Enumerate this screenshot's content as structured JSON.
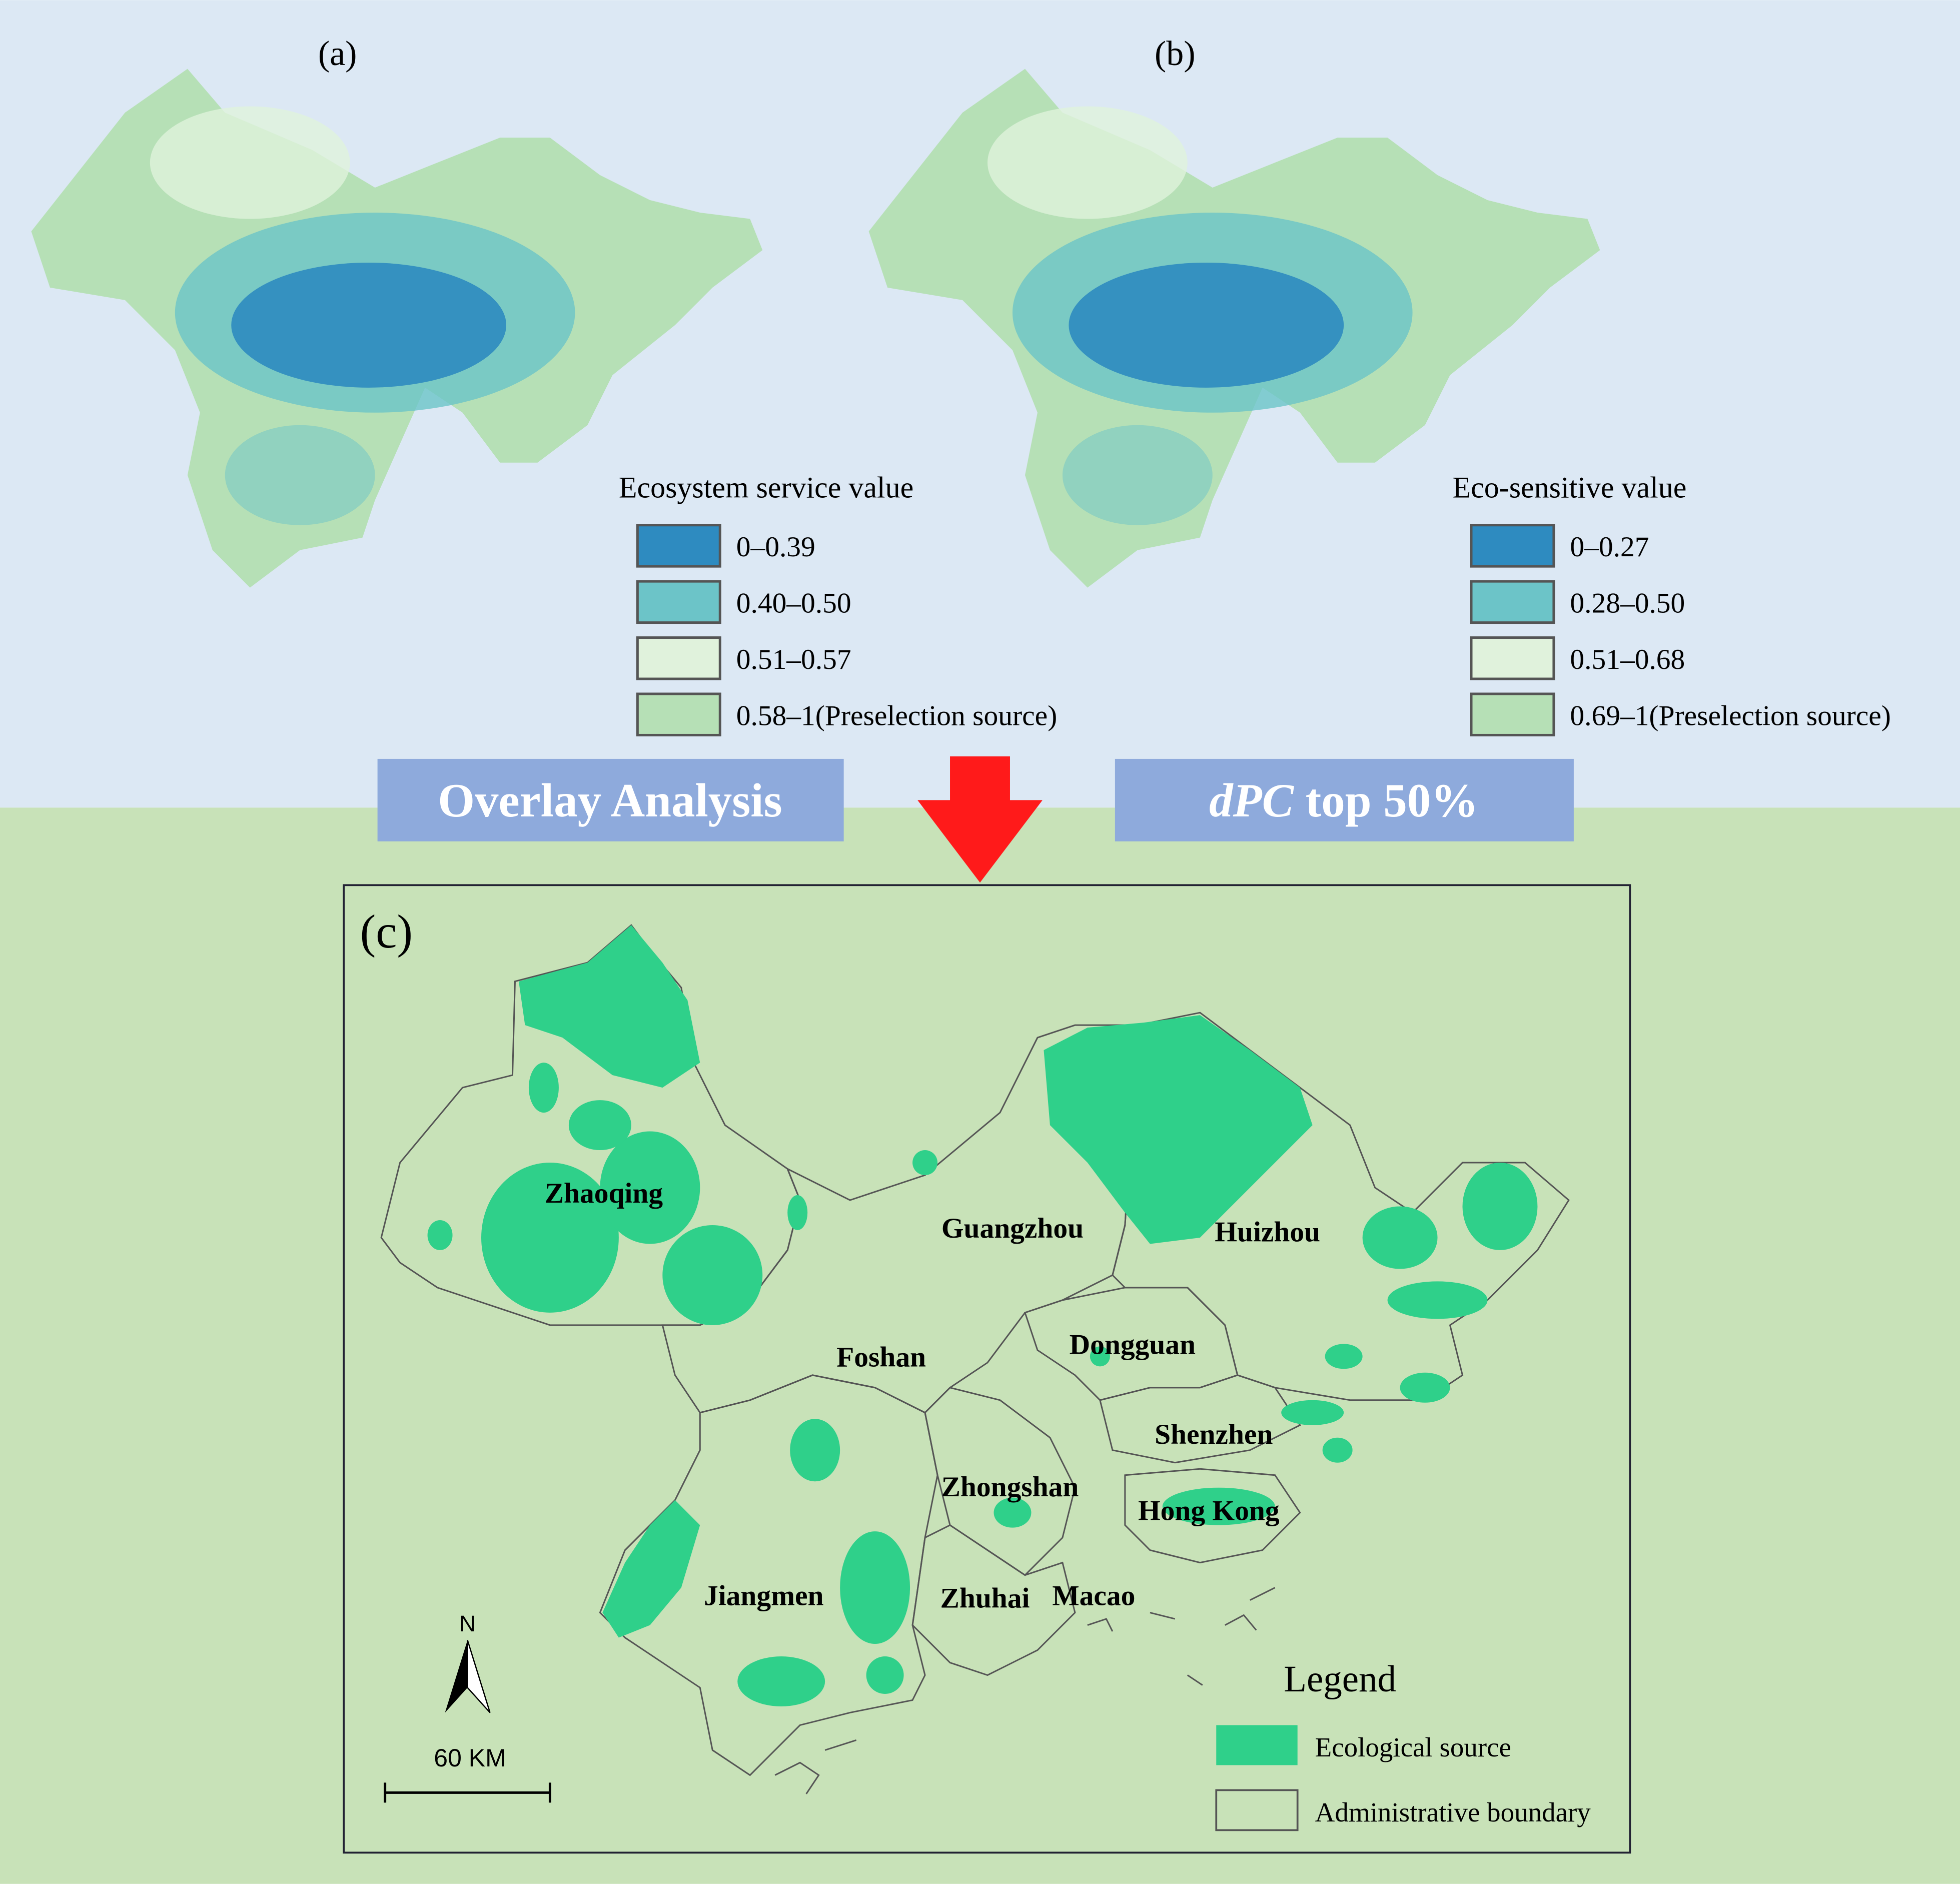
{
  "panels": [
    {
      "label": "(a)",
      "legend_title": "Ecosystem service value",
      "legend_items": [
        "0–0.39",
        "0.40–0.50",
        "0.51–0.57",
        "0.58–1(Preselection source)"
      ]
    },
    {
      "label": "(b)",
      "legend_title": "Eco-sensitive value",
      "legend_items": [
        "0–0.27",
        "0.28–0.50",
        "0.51–0.68",
        "0.69–1(Preselection source)"
      ]
    }
  ],
  "steps": {
    "left": "Overlay Analysis",
    "right_italic": "dPC",
    "right": "top 50%"
  },
  "map": {
    "label": "(c)",
    "cities": [
      "Zhaoqing",
      "Guangzhou",
      "Huizhou",
      "Foshan",
      "Dongguan",
      "Shenzhen",
      "Zhongshan",
      "Hong Kong",
      "Jiangmen",
      "Zhuhai",
      "Macao"
    ],
    "north": "N",
    "scale": "60 KM",
    "legend": {
      "title": "Legend",
      "items": [
        "Ecological source",
        "Administrative boundary"
      ]
    }
  }
}
